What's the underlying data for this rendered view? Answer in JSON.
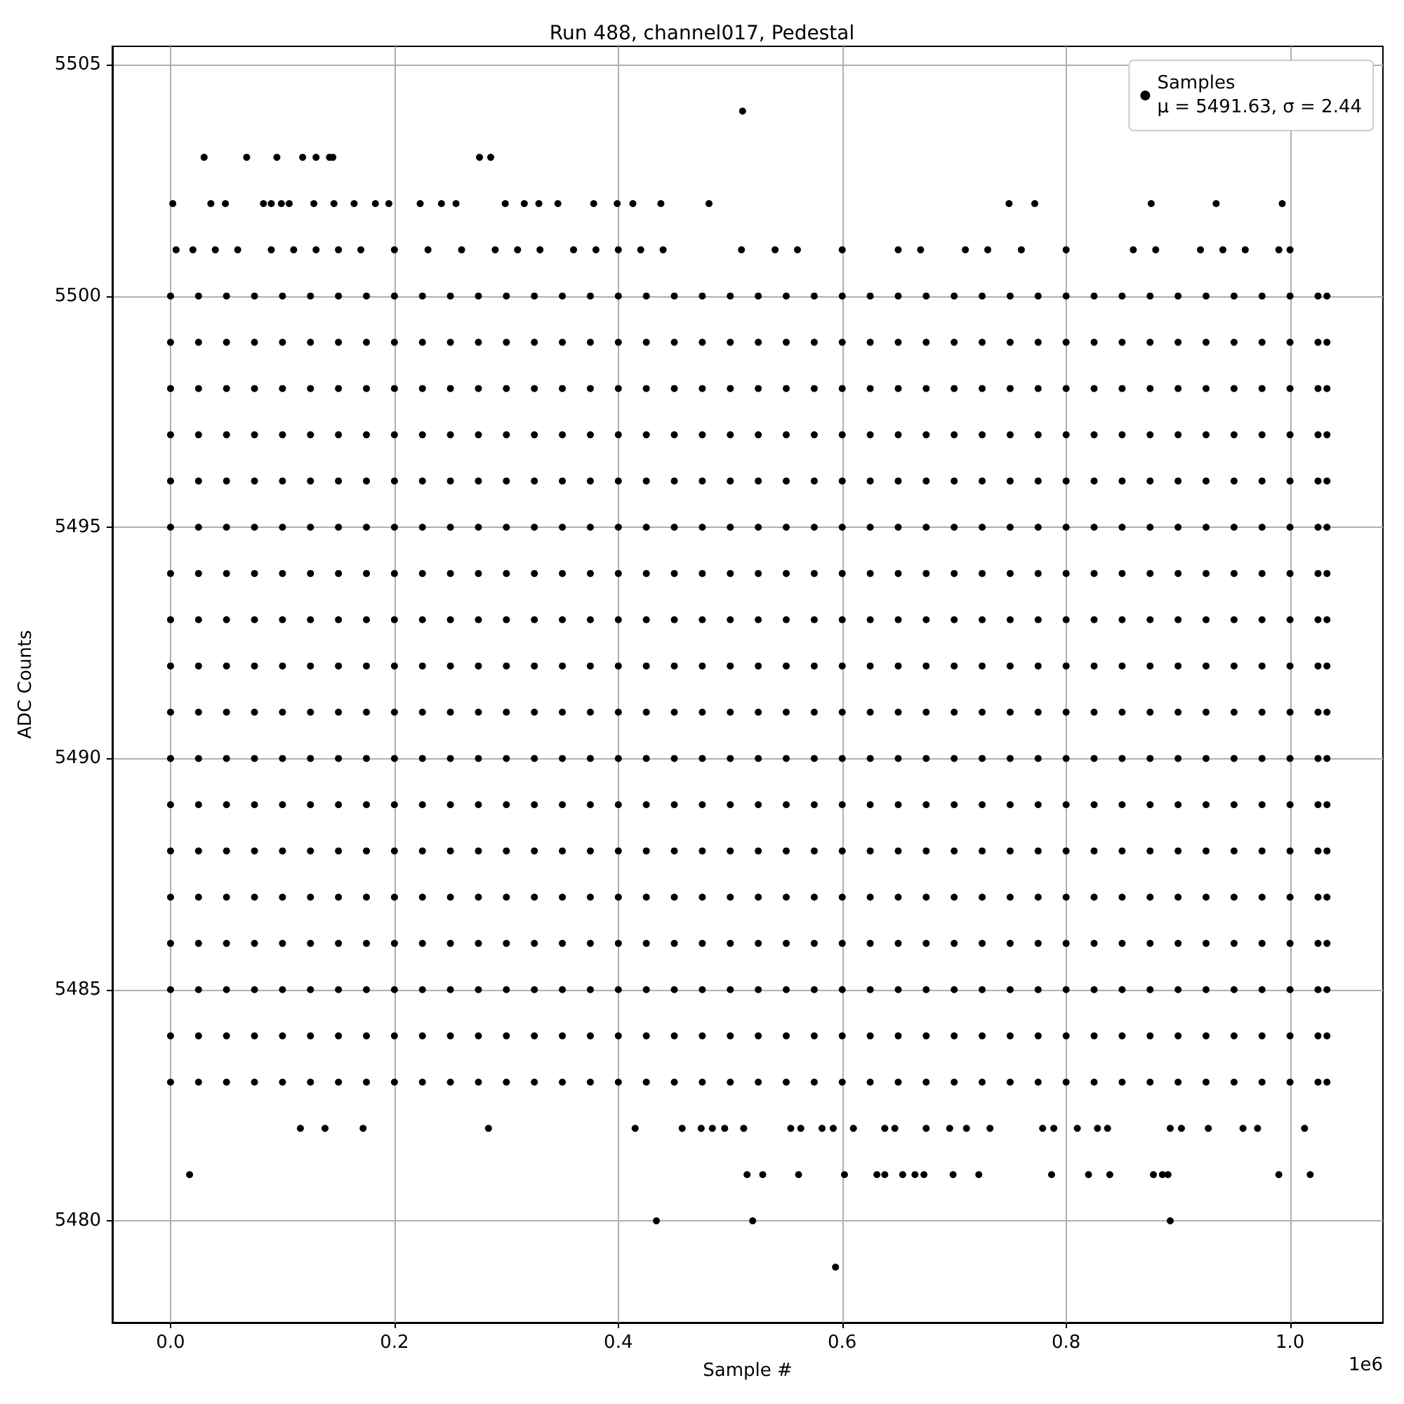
{
  "chart_data": {
    "type": "scatter",
    "title": "Run 488, channel017, Pedestal",
    "xlabel": "Sample #",
    "ylabel": "ADC Counts",
    "annotations": [
      "1e6"
    ],
    "xlim": [
      -0.052,
      1.083
    ],
    "xticks": [
      {
        "value": 0,
        "label": "0.0"
      },
      {
        "value": 0.2,
        "label": "0.2"
      },
      {
        "value": 0.4,
        "label": "0.4"
      },
      {
        "value": 0.6,
        "label": "0.6"
      },
      {
        "value": 0.8,
        "label": "0.8"
      },
      {
        "value": 1,
        "label": "1.0"
      }
    ],
    "ylim": [
      5477.8,
      5505.4
    ],
    "yticks": [
      5480,
      5485,
      5490,
      5495,
      5500,
      5505
    ],
    "grid": true,
    "legend": "top right",
    "marker": "circle",
    "series": [
      {
        "name": "Samples\nμ = 5491.63, σ = 2.44",
        "color": "#000000",
        "x": [
          0.511,
          0.03,
          0.068,
          0.095,
          0.118,
          0.13,
          0.142,
          0.145,
          0.276,
          0.286
        ],
        "values": [
          5504,
          5503,
          5503,
          5503,
          5503,
          5503,
          5503,
          5503,
          5503,
          5503
        ]
      },
      {
        "color": "#000000",
        "x": [
          0.002,
          0.036,
          0.049,
          0.083,
          0.09,
          0.099,
          0.106,
          0.128,
          0.146,
          0.164,
          0.183,
          0.195,
          0.223,
          0.242,
          0.255,
          0.299,
          0.316,
          0.329,
          0.346,
          0.378,
          0.399,
          0.413,
          0.438,
          0.481,
          0.749,
          0.772,
          0.876,
          0.934,
          0.993
        ],
        "values": [
          5502,
          5502,
          5502,
          5502,
          5502,
          5502,
          5502,
          5502,
          5502,
          5502,
          5502,
          5502,
          5502,
          5502,
          5502,
          5502,
          5502,
          5502,
          5502,
          5502,
          5502,
          5502,
          5502,
          5502,
          5502,
          5502,
          5502,
          5502,
          5502
        ]
      },
      {
        "color": "#000000",
        "x": [
          0.005,
          0.02,
          0.04,
          0.06,
          0.09,
          0.11,
          0.13,
          0.15,
          0.17,
          0.2,
          0.23,
          0.26,
          0.29,
          0.31,
          0.33,
          0.36,
          0.38,
          0.4,
          0.42,
          0.44,
          0.51,
          0.54,
          0.56,
          0.6,
          0.65,
          0.67,
          0.71,
          0.73,
          0.76,
          0.8,
          0.86,
          0.88,
          0.92,
          0.94,
          0.96,
          0.99,
          1.0
        ],
        "values": [
          5501,
          5501,
          5501,
          5501,
          5501,
          5501,
          5501,
          5501,
          5501,
          5501,
          5501,
          5501,
          5501,
          5501,
          5501,
          5501,
          5501,
          5501,
          5501,
          5501,
          5501,
          5501,
          5501,
          5501,
          5501,
          5501,
          5501,
          5501,
          5501,
          5501,
          5501,
          5501,
          5501,
          5501,
          5501,
          5501,
          5501
        ]
      },
      {
        "color": "#000000",
        "x": [
          0.116,
          0.138,
          0.172,
          0.284,
          0.415,
          0.457,
          0.474,
          0.484,
          0.495,
          0.512,
          0.554,
          0.563,
          0.582,
          0.592,
          0.61,
          0.638,
          0.647,
          0.675,
          0.696,
          0.711,
          0.732,
          0.779,
          0.789,
          0.81,
          0.828,
          0.837,
          0.893,
          0.903,
          0.927,
          0.958,
          0.971,
          1.013
        ],
        "values": [
          5482,
          5482,
          5482,
          5482,
          5482,
          5482,
          5482,
          5482,
          5482,
          5482,
          5482,
          5482,
          5482,
          5482,
          5482,
          5482,
          5482,
          5482,
          5482,
          5482,
          5482,
          5482,
          5482,
          5482,
          5482,
          5482,
          5482,
          5482,
          5482,
          5482,
          5482,
          5482
        ]
      },
      {
        "color": "#000000",
        "x": [
          0.017,
          0.515,
          0.529,
          0.561,
          0.602,
          0.631,
          0.638,
          0.654,
          0.665,
          0.673,
          0.699,
          0.722,
          0.787,
          0.82,
          0.839,
          0.878,
          0.886,
          0.891,
          0.99,
          1.018
        ],
        "values": [
          5481,
          5481,
          5481,
          5481,
          5481,
          5481,
          5481,
          5481,
          5481,
          5481,
          5481,
          5481,
          5481,
          5481,
          5481,
          5481,
          5481,
          5481,
          5481,
          5481
        ]
      },
      {
        "color": "#000000",
        "x": [
          0.434,
          0.52,
          0.893,
          0.594
        ],
        "values": [
          5480,
          5480,
          5480,
          5479
        ]
      },
      {
        "color": "#000000",
        "x": [
          0,
          0.025,
          0.05,
          0.075,
          0.1,
          0.125,
          0.15,
          0.175,
          0.2,
          0.225,
          0.25,
          0.275,
          0.3,
          0.325,
          0.35,
          0.375,
          0.4,
          0.425,
          0.45,
          0.475,
          0.5,
          0.525,
          0.55,
          0.575,
          0.6,
          0.625,
          0.65,
          0.675,
          0.7,
          0.725,
          0.75,
          0.775,
          0.8,
          0.825,
          0.85,
          0.875,
          0.9,
          0.925,
          0.95,
          0.975,
          1,
          1.025,
          1.033
        ],
        "values": [
          5500,
          5500,
          5500,
          5500,
          5500,
          5500,
          5500,
          5500,
          5500,
          5500,
          5500,
          5500,
          5500,
          5500,
          5500,
          5500,
          5500,
          5500,
          5500,
          5500,
          5500,
          5500,
          5500,
          5500,
          5500,
          5500,
          5500,
          5500,
          5500,
          5500,
          5500,
          5500,
          5500,
          5500,
          5500,
          5500,
          5500,
          5500,
          5500,
          5500,
          5500,
          5500,
          5500
        ]
      },
      {
        "color": "#000000",
        "x": [
          0,
          0.025,
          0.05,
          0.075,
          0.1,
          0.125,
          0.15,
          0.175,
          0.2,
          0.225,
          0.25,
          0.275,
          0.3,
          0.325,
          0.35,
          0.375,
          0.4,
          0.425,
          0.45,
          0.475,
          0.5,
          0.525,
          0.55,
          0.575,
          0.6,
          0.625,
          0.65,
          0.675,
          0.7,
          0.725,
          0.75,
          0.775,
          0.8,
          0.825,
          0.85,
          0.875,
          0.9,
          0.925,
          0.95,
          0.975,
          1,
          1.025,
          1.033
        ],
        "values": [
          5499,
          5499,
          5499,
          5499,
          5499,
          5499,
          5499,
          5499,
          5499,
          5499,
          5499,
          5499,
          5499,
          5499,
          5499,
          5499,
          5499,
          5499,
          5499,
          5499,
          5499,
          5499,
          5499,
          5499,
          5499,
          5499,
          5499,
          5499,
          5499,
          5499,
          5499,
          5499,
          5499,
          5499,
          5499,
          5499,
          5499,
          5499,
          5499,
          5499,
          5499,
          5499,
          5499
        ]
      },
      {
        "color": "#000000",
        "x": [
          0,
          0.025,
          0.05,
          0.075,
          0.1,
          0.125,
          0.15,
          0.175,
          0.2,
          0.225,
          0.25,
          0.275,
          0.3,
          0.325,
          0.35,
          0.375,
          0.4,
          0.425,
          0.45,
          0.475,
          0.5,
          0.525,
          0.55,
          0.575,
          0.6,
          0.625,
          0.65,
          0.675,
          0.7,
          0.725,
          0.75,
          0.775,
          0.8,
          0.825,
          0.85,
          0.875,
          0.9,
          0.925,
          0.95,
          0.975,
          1,
          1.025,
          1.033
        ],
        "values": [
          5498,
          5498,
          5498,
          5498,
          5498,
          5498,
          5498,
          5498,
          5498,
          5498,
          5498,
          5498,
          5498,
          5498,
          5498,
          5498,
          5498,
          5498,
          5498,
          5498,
          5498,
          5498,
          5498,
          5498,
          5498,
          5498,
          5498,
          5498,
          5498,
          5498,
          5498,
          5498,
          5498,
          5498,
          5498,
          5498,
          5498,
          5498,
          5498,
          5498,
          5498,
          5498,
          5498
        ]
      },
      {
        "color": "#000000",
        "x": [
          0,
          0.025,
          0.05,
          0.075,
          0.1,
          0.125,
          0.15,
          0.175,
          0.2,
          0.225,
          0.25,
          0.275,
          0.3,
          0.325,
          0.35,
          0.375,
          0.4,
          0.425,
          0.45,
          0.475,
          0.5,
          0.525,
          0.55,
          0.575,
          0.6,
          0.625,
          0.65,
          0.675,
          0.7,
          0.725,
          0.75,
          0.775,
          0.8,
          0.825,
          0.85,
          0.875,
          0.9,
          0.925,
          0.95,
          0.975,
          1,
          1.025,
          1.033
        ],
        "values": [
          5497,
          5497,
          5497,
          5497,
          5497,
          5497,
          5497,
          5497,
          5497,
          5497,
          5497,
          5497,
          5497,
          5497,
          5497,
          5497,
          5497,
          5497,
          5497,
          5497,
          5497,
          5497,
          5497,
          5497,
          5497,
          5497,
          5497,
          5497,
          5497,
          5497,
          5497,
          5497,
          5497,
          5497,
          5497,
          5497,
          5497,
          5497,
          5497,
          5497,
          5497,
          5497,
          5497
        ]
      },
      {
        "color": "#000000",
        "x": [
          0,
          0.025,
          0.05,
          0.075,
          0.1,
          0.125,
          0.15,
          0.175,
          0.2,
          0.225,
          0.25,
          0.275,
          0.3,
          0.325,
          0.35,
          0.375,
          0.4,
          0.425,
          0.45,
          0.475,
          0.5,
          0.525,
          0.55,
          0.575,
          0.6,
          0.625,
          0.65,
          0.675,
          0.7,
          0.725,
          0.75,
          0.775,
          0.8,
          0.825,
          0.85,
          0.875,
          0.9,
          0.925,
          0.95,
          0.975,
          1,
          1.025,
          1.033
        ],
        "values": [
          5496,
          5496,
          5496,
          5496,
          5496,
          5496,
          5496,
          5496,
          5496,
          5496,
          5496,
          5496,
          5496,
          5496,
          5496,
          5496,
          5496,
          5496,
          5496,
          5496,
          5496,
          5496,
          5496,
          5496,
          5496,
          5496,
          5496,
          5496,
          5496,
          5496,
          5496,
          5496,
          5496,
          5496,
          5496,
          5496,
          5496,
          5496,
          5496,
          5496,
          5496,
          5496,
          5496
        ]
      },
      {
        "color": "#000000",
        "x": [
          0,
          0.025,
          0.05,
          0.075,
          0.1,
          0.125,
          0.15,
          0.175,
          0.2,
          0.225,
          0.25,
          0.275,
          0.3,
          0.325,
          0.35,
          0.375,
          0.4,
          0.425,
          0.45,
          0.475,
          0.5,
          0.525,
          0.55,
          0.575,
          0.6,
          0.625,
          0.65,
          0.675,
          0.7,
          0.725,
          0.75,
          0.775,
          0.8,
          0.825,
          0.85,
          0.875,
          0.9,
          0.925,
          0.95,
          0.975,
          1,
          1.025,
          1.033
        ],
        "values": [
          5495,
          5495,
          5495,
          5495,
          5495,
          5495,
          5495,
          5495,
          5495,
          5495,
          5495,
          5495,
          5495,
          5495,
          5495,
          5495,
          5495,
          5495,
          5495,
          5495,
          5495,
          5495,
          5495,
          5495,
          5495,
          5495,
          5495,
          5495,
          5495,
          5495,
          5495,
          5495,
          5495,
          5495,
          5495,
          5495,
          5495,
          5495,
          5495,
          5495,
          5495,
          5495,
          5495
        ]
      },
      {
        "color": "#000000",
        "x": [
          0,
          0.025,
          0.05,
          0.075,
          0.1,
          0.125,
          0.15,
          0.175,
          0.2,
          0.225,
          0.25,
          0.275,
          0.3,
          0.325,
          0.35,
          0.375,
          0.4,
          0.425,
          0.45,
          0.475,
          0.5,
          0.525,
          0.55,
          0.575,
          0.6,
          0.625,
          0.65,
          0.675,
          0.7,
          0.725,
          0.75,
          0.775,
          0.8,
          0.825,
          0.85,
          0.875,
          0.9,
          0.925,
          0.95,
          0.975,
          1,
          1.025,
          1.033
        ],
        "values": [
          5494,
          5494,
          5494,
          5494,
          5494,
          5494,
          5494,
          5494,
          5494,
          5494,
          5494,
          5494,
          5494,
          5494,
          5494,
          5494,
          5494,
          5494,
          5494,
          5494,
          5494,
          5494,
          5494,
          5494,
          5494,
          5494,
          5494,
          5494,
          5494,
          5494,
          5494,
          5494,
          5494,
          5494,
          5494,
          5494,
          5494,
          5494,
          5494,
          5494,
          5494,
          5494,
          5494
        ]
      },
      {
        "color": "#000000",
        "x": [
          0,
          0.025,
          0.05,
          0.075,
          0.1,
          0.125,
          0.15,
          0.175,
          0.2,
          0.225,
          0.25,
          0.275,
          0.3,
          0.325,
          0.35,
          0.375,
          0.4,
          0.425,
          0.45,
          0.475,
          0.5,
          0.525,
          0.55,
          0.575,
          0.6,
          0.625,
          0.65,
          0.675,
          0.7,
          0.725,
          0.75,
          0.775,
          0.8,
          0.825,
          0.85,
          0.875,
          0.9,
          0.925,
          0.95,
          0.975,
          1,
          1.025,
          1.033
        ],
        "values": [
          5493,
          5493,
          5493,
          5493,
          5493,
          5493,
          5493,
          5493,
          5493,
          5493,
          5493,
          5493,
          5493,
          5493,
          5493,
          5493,
          5493,
          5493,
          5493,
          5493,
          5493,
          5493,
          5493,
          5493,
          5493,
          5493,
          5493,
          5493,
          5493,
          5493,
          5493,
          5493,
          5493,
          5493,
          5493,
          5493,
          5493,
          5493,
          5493,
          5493,
          5493,
          5493,
          5493
        ]
      },
      {
        "color": "#000000",
        "x": [
          0,
          0.025,
          0.05,
          0.075,
          0.1,
          0.125,
          0.15,
          0.175,
          0.2,
          0.225,
          0.25,
          0.275,
          0.3,
          0.325,
          0.35,
          0.375,
          0.4,
          0.425,
          0.45,
          0.475,
          0.5,
          0.525,
          0.55,
          0.575,
          0.6,
          0.625,
          0.65,
          0.675,
          0.7,
          0.725,
          0.75,
          0.775,
          0.8,
          0.825,
          0.85,
          0.875,
          0.9,
          0.925,
          0.95,
          0.975,
          1,
          1.025,
          1.033
        ],
        "values": [
          5492,
          5492,
          5492,
          5492,
          5492,
          5492,
          5492,
          5492,
          5492,
          5492,
          5492,
          5492,
          5492,
          5492,
          5492,
          5492,
          5492,
          5492,
          5492,
          5492,
          5492,
          5492,
          5492,
          5492,
          5492,
          5492,
          5492,
          5492,
          5492,
          5492,
          5492,
          5492,
          5492,
          5492,
          5492,
          5492,
          5492,
          5492,
          5492,
          5492,
          5492,
          5492,
          5492
        ]
      },
      {
        "color": "#000000",
        "x": [
          0,
          0.025,
          0.05,
          0.075,
          0.1,
          0.125,
          0.15,
          0.175,
          0.2,
          0.225,
          0.25,
          0.275,
          0.3,
          0.325,
          0.35,
          0.375,
          0.4,
          0.425,
          0.45,
          0.475,
          0.5,
          0.525,
          0.55,
          0.575,
          0.6,
          0.625,
          0.65,
          0.675,
          0.7,
          0.725,
          0.75,
          0.775,
          0.8,
          0.825,
          0.85,
          0.875,
          0.9,
          0.925,
          0.95,
          0.975,
          1,
          1.025,
          1.033
        ],
        "values": [
          5491,
          5491,
          5491,
          5491,
          5491,
          5491,
          5491,
          5491,
          5491,
          5491,
          5491,
          5491,
          5491,
          5491,
          5491,
          5491,
          5491,
          5491,
          5491,
          5491,
          5491,
          5491,
          5491,
          5491,
          5491,
          5491,
          5491,
          5491,
          5491,
          5491,
          5491,
          5491,
          5491,
          5491,
          5491,
          5491,
          5491,
          5491,
          5491,
          5491,
          5491,
          5491,
          5491
        ]
      },
      {
        "color": "#000000",
        "x": [
          0,
          0.025,
          0.05,
          0.075,
          0.1,
          0.125,
          0.15,
          0.175,
          0.2,
          0.225,
          0.25,
          0.275,
          0.3,
          0.325,
          0.35,
          0.375,
          0.4,
          0.425,
          0.45,
          0.475,
          0.5,
          0.525,
          0.55,
          0.575,
          0.6,
          0.625,
          0.65,
          0.675,
          0.7,
          0.725,
          0.75,
          0.775,
          0.8,
          0.825,
          0.85,
          0.875,
          0.9,
          0.925,
          0.95,
          0.975,
          1,
          1.025,
          1.033
        ],
        "values": [
          5490,
          5490,
          5490,
          5490,
          5490,
          5490,
          5490,
          5490,
          5490,
          5490,
          5490,
          5490,
          5490,
          5490,
          5490,
          5490,
          5490,
          5490,
          5490,
          5490,
          5490,
          5490,
          5490,
          5490,
          5490,
          5490,
          5490,
          5490,
          5490,
          5490,
          5490,
          5490,
          5490,
          5490,
          5490,
          5490,
          5490,
          5490,
          5490,
          5490,
          5490,
          5490,
          5490
        ]
      },
      {
        "color": "#000000",
        "x": [
          0,
          0.025,
          0.05,
          0.075,
          0.1,
          0.125,
          0.15,
          0.175,
          0.2,
          0.225,
          0.25,
          0.275,
          0.3,
          0.325,
          0.35,
          0.375,
          0.4,
          0.425,
          0.45,
          0.475,
          0.5,
          0.525,
          0.55,
          0.575,
          0.6,
          0.625,
          0.65,
          0.675,
          0.7,
          0.725,
          0.75,
          0.775,
          0.8,
          0.825,
          0.85,
          0.875,
          0.9,
          0.925,
          0.95,
          0.975,
          1,
          1.025,
          1.033
        ],
        "values": [
          5489,
          5489,
          5489,
          5489,
          5489,
          5489,
          5489,
          5489,
          5489,
          5489,
          5489,
          5489,
          5489,
          5489,
          5489,
          5489,
          5489,
          5489,
          5489,
          5489,
          5489,
          5489,
          5489,
          5489,
          5489,
          5489,
          5489,
          5489,
          5489,
          5489,
          5489,
          5489,
          5489,
          5489,
          5489,
          5489,
          5489,
          5489,
          5489,
          5489,
          5489,
          5489,
          5489
        ]
      },
      {
        "color": "#000000",
        "x": [
          0,
          0.025,
          0.05,
          0.075,
          0.1,
          0.125,
          0.15,
          0.175,
          0.2,
          0.225,
          0.25,
          0.275,
          0.3,
          0.325,
          0.35,
          0.375,
          0.4,
          0.425,
          0.45,
          0.475,
          0.5,
          0.525,
          0.55,
          0.575,
          0.6,
          0.625,
          0.65,
          0.675,
          0.7,
          0.725,
          0.75,
          0.775,
          0.8,
          0.825,
          0.85,
          0.875,
          0.9,
          0.925,
          0.95,
          0.975,
          1,
          1.025,
          1.033
        ],
        "values": [
          5488,
          5488,
          5488,
          5488,
          5488,
          5488,
          5488,
          5488,
          5488,
          5488,
          5488,
          5488,
          5488,
          5488,
          5488,
          5488,
          5488,
          5488,
          5488,
          5488,
          5488,
          5488,
          5488,
          5488,
          5488,
          5488,
          5488,
          5488,
          5488,
          5488,
          5488,
          5488,
          5488,
          5488,
          5488,
          5488,
          5488,
          5488,
          5488,
          5488,
          5488,
          5488,
          5488
        ]
      },
      {
        "color": "#000000",
        "x": [
          0,
          0.025,
          0.05,
          0.075,
          0.1,
          0.125,
          0.15,
          0.175,
          0.2,
          0.225,
          0.25,
          0.275,
          0.3,
          0.325,
          0.35,
          0.375,
          0.4,
          0.425,
          0.45,
          0.475,
          0.5,
          0.525,
          0.55,
          0.575,
          0.6,
          0.625,
          0.65,
          0.675,
          0.7,
          0.725,
          0.75,
          0.775,
          0.8,
          0.825,
          0.85,
          0.875,
          0.9,
          0.925,
          0.95,
          0.975,
          1,
          1.025,
          1.033
        ],
        "values": [
          5487,
          5487,
          5487,
          5487,
          5487,
          5487,
          5487,
          5487,
          5487,
          5487,
          5487,
          5487,
          5487,
          5487,
          5487,
          5487,
          5487,
          5487,
          5487,
          5487,
          5487,
          5487,
          5487,
          5487,
          5487,
          5487,
          5487,
          5487,
          5487,
          5487,
          5487,
          5487,
          5487,
          5487,
          5487,
          5487,
          5487,
          5487,
          5487,
          5487,
          5487,
          5487,
          5487
        ]
      },
      {
        "color": "#000000",
        "x": [
          0,
          0.025,
          0.05,
          0.075,
          0.1,
          0.125,
          0.15,
          0.175,
          0.2,
          0.225,
          0.25,
          0.275,
          0.3,
          0.325,
          0.35,
          0.375,
          0.4,
          0.425,
          0.45,
          0.475,
          0.5,
          0.525,
          0.55,
          0.575,
          0.6,
          0.625,
          0.65,
          0.675,
          0.7,
          0.725,
          0.75,
          0.775,
          0.8,
          0.825,
          0.85,
          0.875,
          0.9,
          0.925,
          0.95,
          0.975,
          1,
          1.025,
          1.033
        ],
        "values": [
          5486,
          5486,
          5486,
          5486,
          5486,
          5486,
          5486,
          5486,
          5486,
          5486,
          5486,
          5486,
          5486,
          5486,
          5486,
          5486,
          5486,
          5486,
          5486,
          5486,
          5486,
          5486,
          5486,
          5486,
          5486,
          5486,
          5486,
          5486,
          5486,
          5486,
          5486,
          5486,
          5486,
          5486,
          5486,
          5486,
          5486,
          5486,
          5486,
          5486,
          5486,
          5486,
          5486
        ]
      },
      {
        "color": "#000000",
        "x": [
          0,
          0.025,
          0.05,
          0.075,
          0.1,
          0.125,
          0.15,
          0.175,
          0.2,
          0.225,
          0.25,
          0.275,
          0.3,
          0.325,
          0.35,
          0.375,
          0.4,
          0.425,
          0.45,
          0.475,
          0.5,
          0.525,
          0.55,
          0.575,
          0.6,
          0.625,
          0.65,
          0.675,
          0.7,
          0.725,
          0.75,
          0.775,
          0.8,
          0.825,
          0.85,
          0.875,
          0.9,
          0.925,
          0.95,
          0.975,
          1,
          1.025,
          1.033
        ],
        "values": [
          5485,
          5485,
          5485,
          5485,
          5485,
          5485,
          5485,
          5485,
          5485,
          5485,
          5485,
          5485,
          5485,
          5485,
          5485,
          5485,
          5485,
          5485,
          5485,
          5485,
          5485,
          5485,
          5485,
          5485,
          5485,
          5485,
          5485,
          5485,
          5485,
          5485,
          5485,
          5485,
          5485,
          5485,
          5485,
          5485,
          5485,
          5485,
          5485,
          5485,
          5485,
          5485,
          5485
        ]
      },
      {
        "color": "#000000",
        "x": [
          0,
          0.025,
          0.05,
          0.075,
          0.1,
          0.125,
          0.15,
          0.175,
          0.2,
          0.225,
          0.25,
          0.275,
          0.3,
          0.325,
          0.35,
          0.375,
          0.4,
          0.425,
          0.45,
          0.475,
          0.5,
          0.525,
          0.55,
          0.575,
          0.6,
          0.625,
          0.65,
          0.675,
          0.7,
          0.725,
          0.75,
          0.775,
          0.8,
          0.825,
          0.85,
          0.875,
          0.9,
          0.925,
          0.95,
          0.975,
          1,
          1.025,
          1.033
        ],
        "values": [
          5484,
          5484,
          5484,
          5484,
          5484,
          5484,
          5484,
          5484,
          5484,
          5484,
          5484,
          5484,
          5484,
          5484,
          5484,
          5484,
          5484,
          5484,
          5484,
          5484,
          5484,
          5484,
          5484,
          5484,
          5484,
          5484,
          5484,
          5484,
          5484,
          5484,
          5484,
          5484,
          5484,
          5484,
          5484,
          5484,
          5484,
          5484,
          5484,
          5484,
          5484,
          5484,
          5484
        ]
      },
      {
        "color": "#000000",
        "x": [
          0,
          0.025,
          0.05,
          0.075,
          0.1,
          0.125,
          0.15,
          0.175,
          0.2,
          0.225,
          0.25,
          0.275,
          0.3,
          0.325,
          0.35,
          0.375,
          0.4,
          0.425,
          0.45,
          0.475,
          0.5,
          0.525,
          0.55,
          0.575,
          0.6,
          0.625,
          0.65,
          0.675,
          0.7,
          0.725,
          0.75,
          0.775,
          0.8,
          0.825,
          0.85,
          0.875,
          0.9,
          0.925,
          0.95,
          0.975,
          1,
          1.025,
          1.033
        ],
        "values": [
          5483,
          5483,
          5483,
          5483,
          5483,
          5483,
          5483,
          5483,
          5483,
          5483,
          5483,
          5483,
          5483,
          5483,
          5483,
          5483,
          5483,
          5483,
          5483,
          5483,
          5483,
          5483,
          5483,
          5483,
          5483,
          5483,
          5483,
          5483,
          5483,
          5483,
          5483,
          5483,
          5483,
          5483,
          5483,
          5483,
          5483,
          5483,
          5483,
          5483,
          5483,
          5483,
          5483
        ]
      }
    ]
  }
}
